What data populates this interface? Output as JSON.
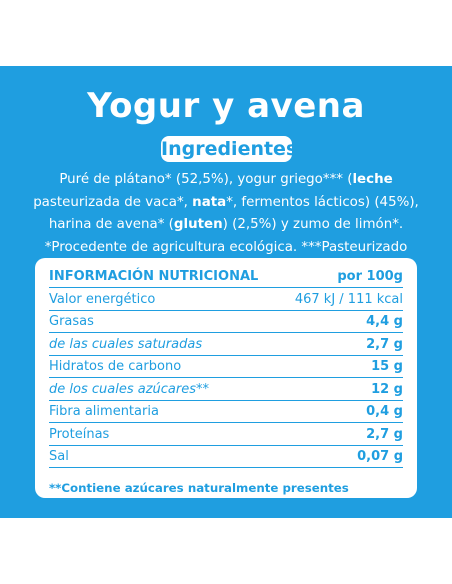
{
  "title": "Yogur y avena",
  "ingredients_label": "Ingredientes",
  "ingredients_parts": [
    {
      "text": "Puré de plátano* (52,5%), yogur griego*** (",
      "bold": false
    },
    {
      "text": "leche",
      "bold": true
    },
    {
      "text": " pasteurizada de vaca*, ",
      "bold": false
    },
    {
      "text": "nata",
      "bold": true
    },
    {
      "text": "*, fermentos lácticos) (45%), harina de avena* (",
      "bold": false
    },
    {
      "text": "gluten",
      "bold": true
    },
    {
      "text": ") (2,5%) y zumo de limón*. *Procedente de agricultura ecológica. ***Pasteurizado después de la fermentación.",
      "bold": false
    }
  ],
  "nutrition": {
    "header_label": "INFORMACIÓN NUTRICIONAL",
    "header_value": "por 100g",
    "rows": [
      {
        "label": "Valor energético",
        "value": "467 kJ / 111 kcal",
        "type": "energy"
      },
      {
        "label": "Grasas",
        "value": "4,4 g",
        "type": "main"
      },
      {
        "label": "de las cuales saturadas",
        "value": "2,7 g",
        "type": "sub"
      },
      {
        "label": "Hidratos de carbono",
        "value": "15 g",
        "type": "main"
      },
      {
        "label": "de los cuales azúcares**",
        "value": "12 g",
        "type": "sub"
      },
      {
        "label": "Fibra alimentaria",
        "value": "0,4 g",
        "type": "main"
      },
      {
        "label": "Proteínas",
        "value": "2,7 g",
        "type": "main"
      },
      {
        "label": "Sal",
        "value": "0,07 g",
        "type": "main"
      }
    ],
    "footnote": "**Contiene azúcares naturalmente presentes"
  },
  "colors": {
    "brand_blue": "#1f9ee0",
    "white": "#ffffff"
  }
}
